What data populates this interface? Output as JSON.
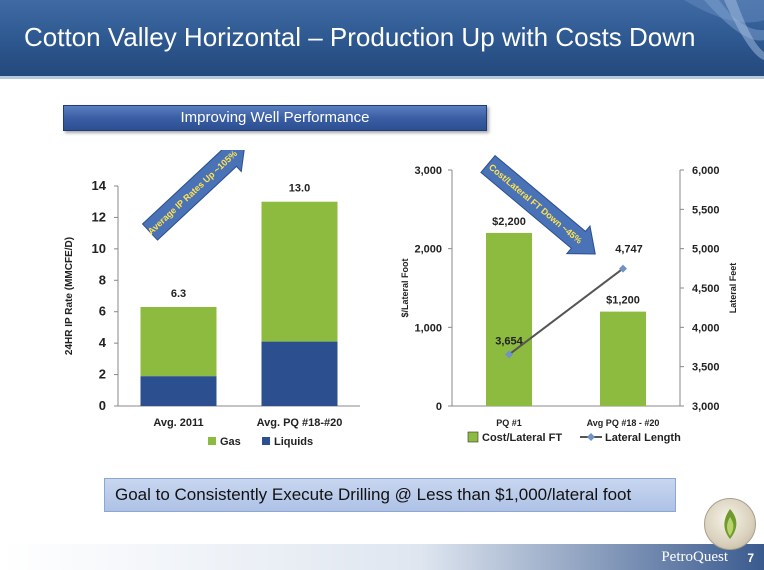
{
  "header": {
    "title": "Cotton Valley Horizontal – Production Up with Costs Down"
  },
  "banner": {
    "label": "Improving Well Performance"
  },
  "goal": {
    "text": "Goal to Consistently Execute Drilling @ Less than $1,000/lateral foot"
  },
  "footer": {
    "brand": "PetroQuest",
    "page": "7"
  },
  "chart_data": [
    {
      "type": "bar",
      "stacked": true,
      "categories": [
        "Avg. 2011",
        "Avg. PQ #18-#20"
      ],
      "series": [
        {
          "name": "Liquids",
          "values": [
            1.9,
            4.1
          ],
          "color": "#2b4f8f"
        },
        {
          "name": "Gas",
          "values": [
            4.4,
            8.9
          ],
          "color": "#8dbb3f"
        }
      ],
      "totals": [
        "6.3",
        "13.0"
      ],
      "ylabel": "24HR IP Rate (MMCFE/D)",
      "ylim": [
        0,
        14
      ],
      "yticks": [
        "0",
        "2",
        "4",
        "6",
        "8",
        "10",
        "12",
        "14"
      ],
      "legend": "bottom",
      "annotation": "Average IP Rates Up ~105%"
    },
    {
      "type": "bar",
      "categories": [
        "PQ #1",
        "Avg PQ #18 - #20"
      ],
      "bar_series": {
        "name": "Cost/Lateral FT",
        "values": [
          2200,
          1200
        ],
        "labels": [
          "$2,200",
          "$1,200"
        ],
        "color": "#8dbb3f"
      },
      "line_series": {
        "name": "Lateral Length",
        "values": [
          3654,
          4747
        ],
        "labels": [
          "3,654",
          "4,747"
        ],
        "color": "#6f93c8"
      },
      "ylabel": "$/Lateral Foot",
      "ylim": [
        0,
        3000
      ],
      "yticks": [
        "0",
        "1,000",
        "2,000",
        "3,000"
      ],
      "y2label": "Lateral Feet",
      "y2lim": [
        3000,
        6000
      ],
      "y2ticks": [
        "3,000",
        "3,500",
        "4,000",
        "4,500",
        "5,000",
        "5,500",
        "6,000"
      ],
      "legend": "bottom",
      "annotation": "Cost/Lateral FT Down ~45%"
    }
  ]
}
